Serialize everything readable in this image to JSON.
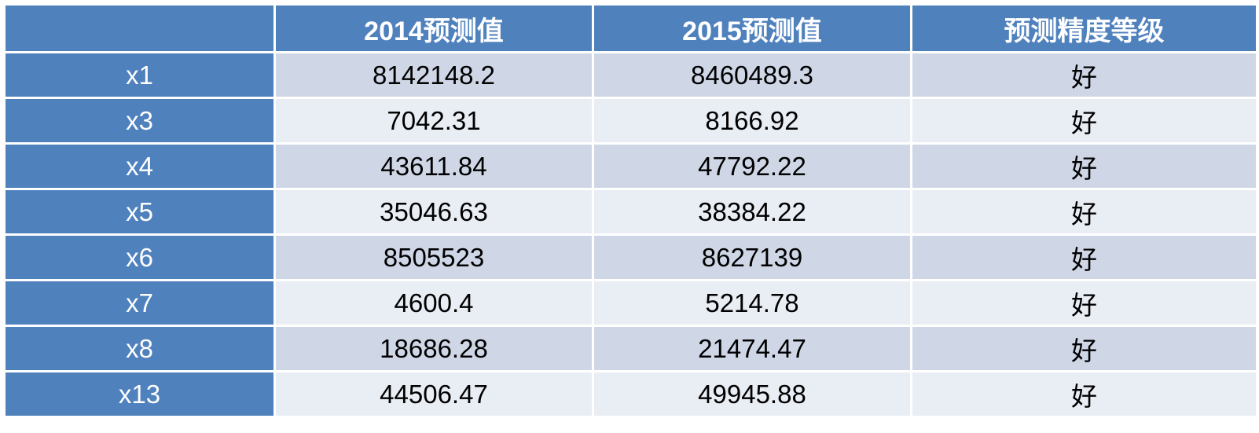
{
  "table": {
    "headers": [
      "",
      "2014预测值",
      "2015预测值",
      "预测精度等级"
    ],
    "rows": [
      [
        "x1",
        "8142148.2",
        "8460489.3",
        "好"
      ],
      [
        "x3",
        "7042.31",
        "8166.92",
        "好"
      ],
      [
        "x4",
        "43611.84",
        "47792.22",
        "好"
      ],
      [
        "x5",
        "35046.63",
        "38384.22",
        "好"
      ],
      [
        "x6",
        "8505523",
        "8627139",
        "好"
      ],
      [
        "x7",
        "4600.4",
        "5214.78",
        "好"
      ],
      [
        "x8",
        "18686.28",
        "21474.47",
        "好"
      ],
      [
        "x13",
        "44506.47",
        "49945.88",
        "好"
      ]
    ]
  },
  "colors": {
    "header_bg": "#4f81bd",
    "row_odd_bg": "#cfd7e7",
    "row_even_bg": "#e9edf4"
  }
}
